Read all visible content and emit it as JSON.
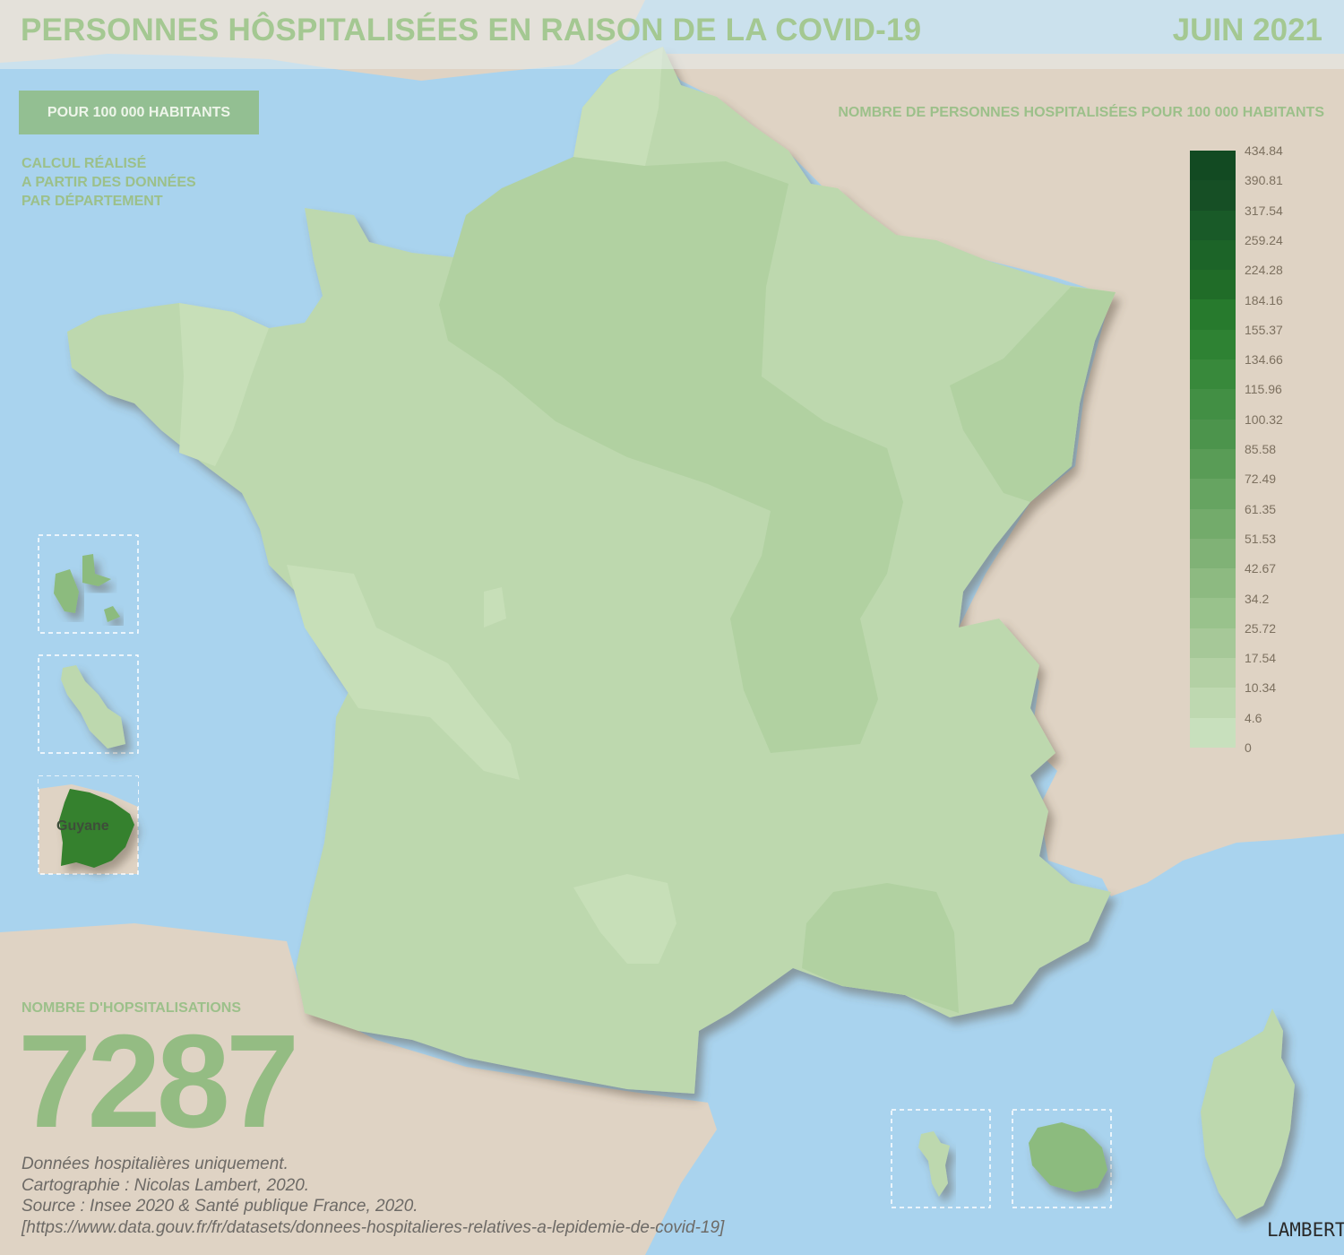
{
  "header": {
    "title": "PERSONNES HÔSPITALISÉES EN RAISON DE LA COVID-19",
    "date": "JUIN 2021"
  },
  "badge": "POUR 100 000 HABITANTS",
  "calc_lines": [
    "CALCUL RÉALISÉ",
    "A PARTIR DES DONNÉES",
    "PAR DÉPARTEMENT"
  ],
  "legend": {
    "title": "NOMBRE DE PERSONNES HOSPITALISÉES POUR 100 000 HABITANTS",
    "ticks": [
      "434.84",
      "390.81",
      "317.54",
      "259.24",
      "224.28",
      "184.16",
      "155.37",
      "134.66",
      "115.96",
      "100.32",
      "85.58",
      "72.49",
      "61.35",
      "51.53",
      "42.67",
      "34.2",
      "25.72",
      "17.54",
      "10.34",
      "4.6",
      "0"
    ],
    "colors": [
      "#124a22",
      "#164f25",
      "#195a28",
      "#1c6428",
      "#206c28",
      "#277a2d",
      "#2e8233",
      "#38893b",
      "#428f44",
      "#4c944c",
      "#599c56",
      "#66a461",
      "#73ab6b",
      "#80b276",
      "#8dba81",
      "#99c28c",
      "#a6c898",
      "#b3d0a4",
      "#bed8b0",
      "#c8e0bd"
    ]
  },
  "count": {
    "label": "NOMBRE D'HOPSITALISATIONS",
    "value": "7287"
  },
  "source_lines": [
    "Données hospitalières uniquement.",
    "Cartographie : Nicolas Lambert, 2020.",
    "Source : Insee 2020 & Santé publique France, 2020.",
    "[https://www.data.gouv.fr/fr/datasets/donnees-hospitalieres-relatives-a-lepidemie-de-covid-19]"
  ],
  "inset_label": "Guyane",
  "signature": "LAMBERT",
  "colors": {
    "sea": "#a9d3ee",
    "land": "#dfd3c4",
    "fill_low": "#c7dfb8",
    "fill_main": "#bdd8ae",
    "fill_mid": "#b1d1a1",
    "guyane": "#36812e",
    "reunion": "#8cbb7e"
  }
}
